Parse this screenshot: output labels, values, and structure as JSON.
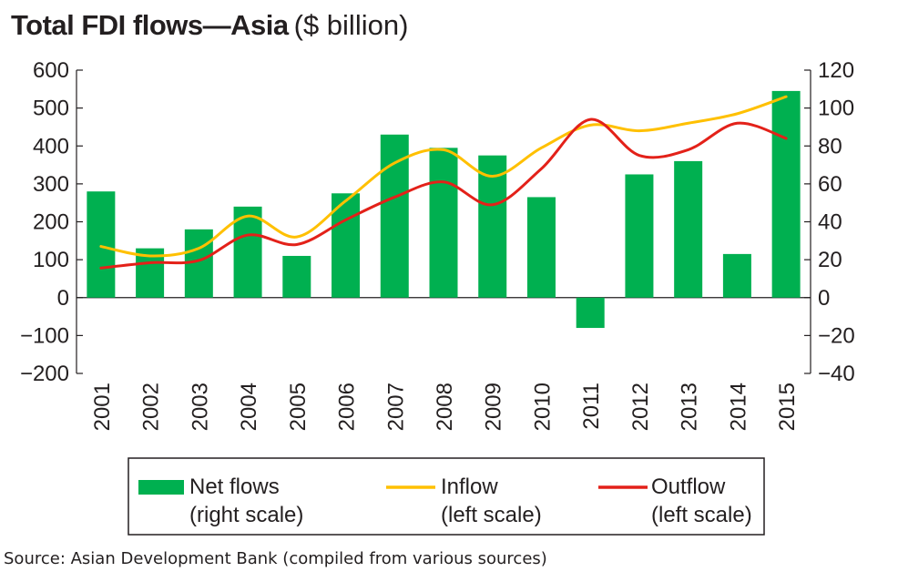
{
  "title": "Total FDI flows—Asia",
  "title_unit": "($ billion)",
  "source": "Source: Asian Development Bank (compiled from various sources)",
  "chart_data": {
    "type": "bar+line",
    "title": "Total FDI flows—Asia",
    "unit": "($ billion)",
    "categories": [
      "2001",
      "2002",
      "2003",
      "2004",
      "2005",
      "2006",
      "2007",
      "2008",
      "2009",
      "2010",
      "2011",
      "2012",
      "2013",
      "2014",
      "2015"
    ],
    "left_axis": {
      "range": [
        -200,
        600
      ],
      "ticks": [
        600,
        500,
        400,
        300,
        200,
        100,
        0,
        -100,
        -200
      ],
      "tick_labels": [
        "600",
        "500",
        "400",
        "300",
        "200",
        "100",
        "0",
        "−100",
        "−200"
      ]
    },
    "right_axis": {
      "range": [
        -40,
        120
      ],
      "ticks": [
        120,
        100,
        80,
        60,
        40,
        20,
        0,
        -20,
        -40
      ],
      "tick_labels": [
        "120",
        "100",
        "80",
        "60",
        "40",
        "20",
        "0",
        "−20",
        "−40"
      ]
    },
    "grid": false,
    "legend_position": "bottom",
    "series": [
      {
        "name": "Net flows",
        "legend_line2": "(right scale)",
        "type": "bar",
        "axis": "right",
        "color": "#00b050",
        "values": [
          56,
          26,
          36,
          48,
          22,
          55,
          86,
          79,
          75,
          53,
          -16,
          65,
          72,
          23,
          109
        ]
      },
      {
        "name": "Inflow",
        "legend_line2": "(left scale)",
        "type": "line",
        "axis": "left",
        "color": "#ffc000",
        "values": [
          135,
          110,
          130,
          215,
          160,
          255,
          355,
          390,
          320,
          395,
          455,
          440,
          460,
          485,
          530
        ]
      },
      {
        "name": "Outflow",
        "legend_line2": "(left scale)",
        "type": "line",
        "axis": "left",
        "color": "#e32119",
        "values": [
          78,
          92,
          98,
          165,
          140,
          205,
          265,
          305,
          245,
          340,
          470,
          375,
          390,
          460,
          420
        ]
      }
    ]
  }
}
